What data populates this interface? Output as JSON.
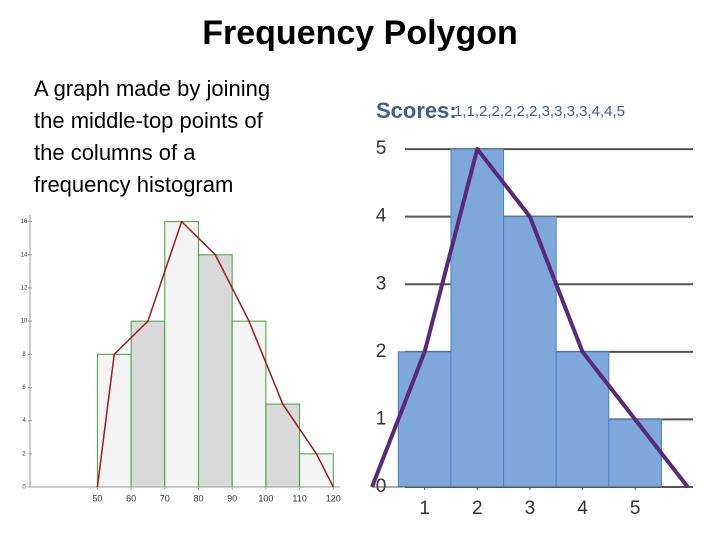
{
  "title": "Frequency Polygon",
  "body": [
    "A graph made by joining",
    "the middle-top points of",
    "the columns of a",
    "frequency histogram"
  ],
  "chart_data": [
    {
      "type": "histogram",
      "bins": [
        50,
        60,
        70,
        80,
        90,
        100,
        110,
        120
      ],
      "counts": [
        8,
        10,
        16,
        14,
        10,
        5,
        2
      ],
      "bar_colors": [
        "#f4f4f4",
        "#d9d9d9",
        "#f4f4f4",
        "#d9d9d9",
        "#f4f4f4",
        "#d9d9d9",
        "#f4f4f4"
      ],
      "edge_color": "#3aa33a",
      "polygon": {
        "x": [
          50,
          55,
          65,
          75,
          85,
          95,
          105,
          115,
          120
        ],
        "values": [
          0,
          8,
          10,
          16,
          14,
          10,
          5,
          2,
          0
        ],
        "color": "#9b1c1c"
      },
      "xlim": [
        30,
        122
      ],
      "ylim": [
        0,
        16.4
      ],
      "xticks": [
        50,
        60,
        70,
        80,
        90,
        100,
        110,
        120
      ],
      "yticks": [
        0,
        2,
        4,
        6,
        8,
        10,
        12,
        14,
        16
      ],
      "grid": false
    },
    {
      "type": "histogram",
      "title": "Scores:",
      "subtitle": "1,1,2,2,2,2,2,3,3,3,3,4,4,5",
      "bins": [
        0.5,
        1.5,
        2.5,
        3.5,
        4.5,
        5.5
      ],
      "counts": [
        2,
        5,
        4,
        2,
        1
      ],
      "color": "#7ea7da",
      "edge_color": "#4f7fbf",
      "polygon": {
        "x": [
          0,
          1,
          2,
          3,
          4,
          5,
          6
        ],
        "values": [
          0,
          2,
          5,
          4,
          2,
          1,
          0
        ],
        "color": "#5a2a78"
      },
      "xlim": [
        0,
        6.1
      ],
      "ylim": [
        0,
        5.8
      ],
      "xticks": [
        1,
        2,
        3,
        4,
        5
      ],
      "yticks": [
        0,
        1,
        2,
        3,
        4,
        5
      ],
      "grid": true
    }
  ]
}
